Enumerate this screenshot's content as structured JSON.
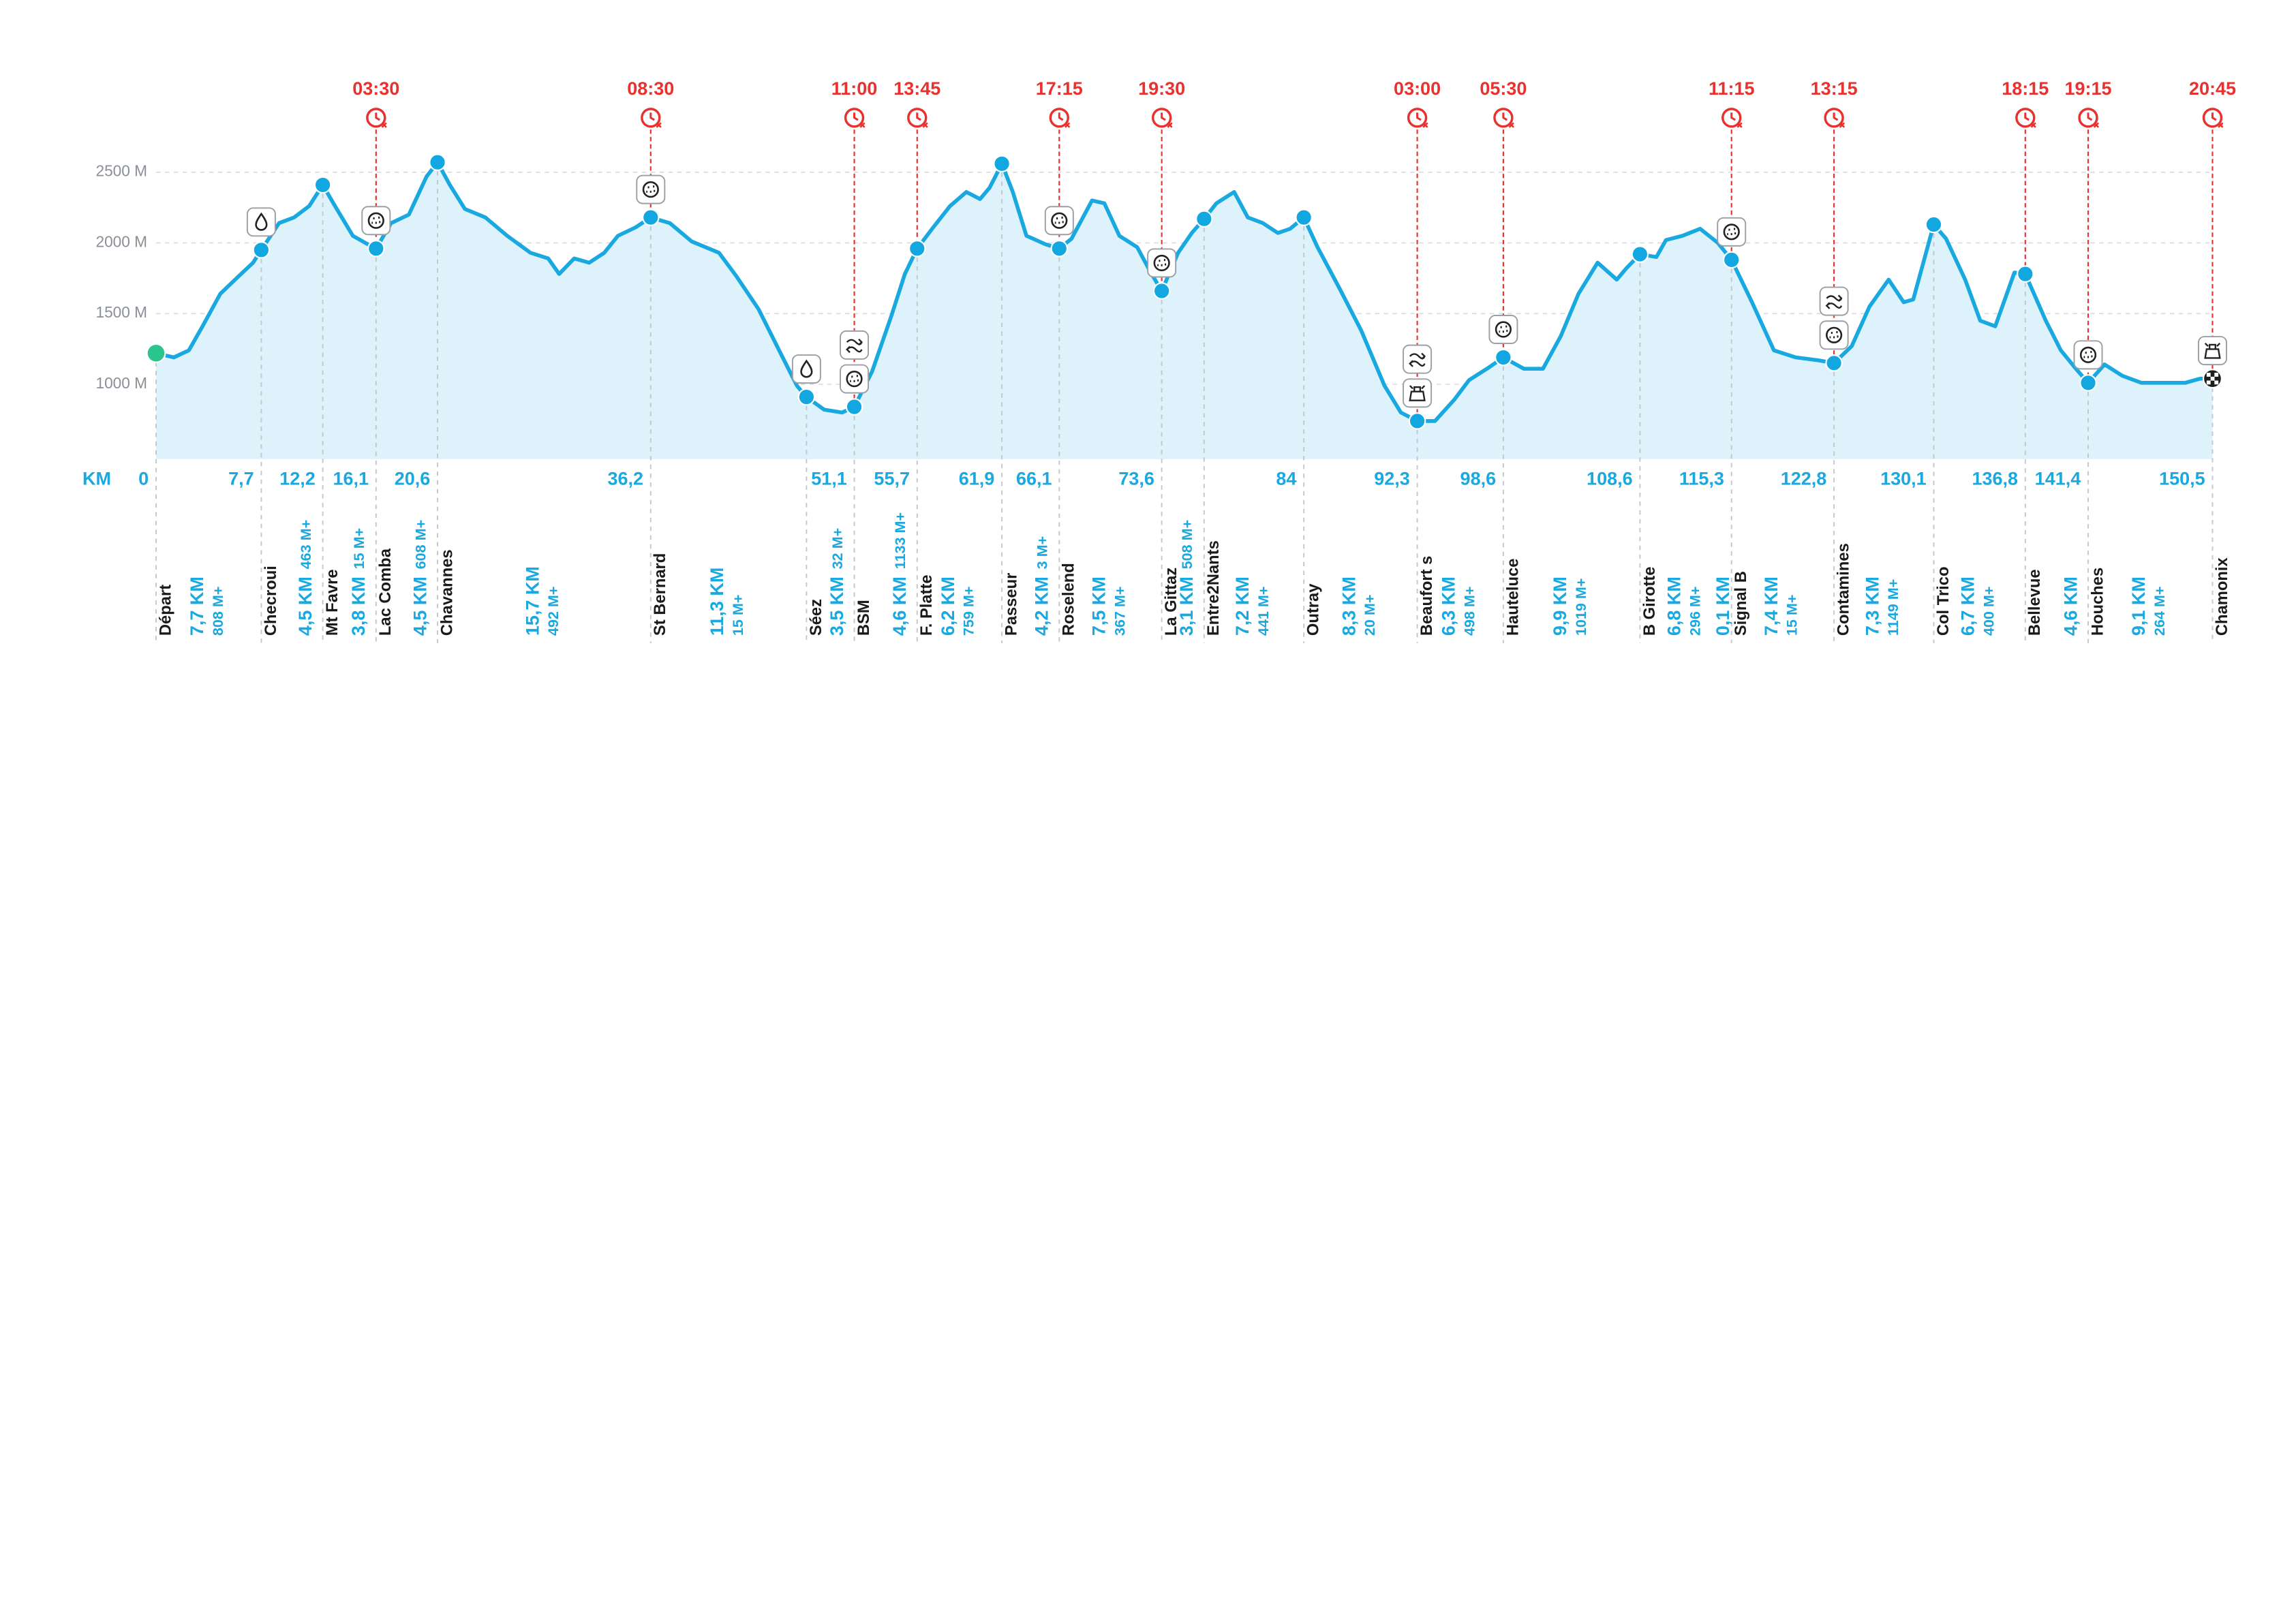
{
  "chart_data": {
    "type": "area",
    "color": "#19a9e0",
    "x_label": "KM",
    "xlim": [
      0,
      150.5
    ],
    "ylim": [
      470,
      2750
    ],
    "grid": true,
    "yticks": [
      {
        "value": 1000,
        "label": "1000 M"
      },
      {
        "value": 1500,
        "label": "1500 M"
      },
      {
        "value": 2000,
        "label": "2000 M"
      },
      {
        "value": 2500,
        "label": "2500 M"
      }
    ],
    "xticks": [
      0,
      {
        "value": 7.7,
        "label": "7,7"
      },
      {
        "value": 12.2,
        "label": "12,2"
      },
      {
        "value": 16.1,
        "label": "16,1"
      },
      {
        "value": 20.6,
        "label": "20,6"
      },
      {
        "value": 36.2,
        "label": "36,2"
      },
      {
        "value": 51.1,
        "label": "51,1"
      },
      {
        "value": 55.7,
        "label": "55,7"
      },
      {
        "value": 61.9,
        "label": "61,9"
      },
      {
        "value": 66.1,
        "label": "66,1"
      },
      {
        "value": 73.6,
        "label": "73,6"
      },
      84,
      {
        "value": 92.3,
        "label": "92,3"
      },
      {
        "value": 98.6,
        "label": "98,6"
      },
      {
        "value": 108.6,
        "label": "108,6"
      },
      {
        "value": 115.3,
        "label": "115,3"
      },
      {
        "value": 122.8,
        "label": "122,8"
      },
      {
        "value": 130.1,
        "label": "130,1"
      },
      {
        "value": 136.8,
        "label": "136,8"
      },
      {
        "value": 141.4,
        "label": "141,4"
      },
      {
        "value": 150.5,
        "label": "150,5"
      }
    ],
    "x": [
      0,
      1.3,
      2.4,
      3.4,
      4.7,
      6.0,
      7.1,
      7.7,
      9.0,
      10.1,
      11.2,
      12.2,
      13.1,
      14.4,
      15.5,
      16.1,
      17.2,
      18.5,
      19.8,
      20.6,
      21.5,
      22.6,
      24.1,
      25.7,
      27.4,
      28.7,
      29.5,
      30.6,
      31.7,
      32.8,
      33.8,
      35.1,
      36.2,
      37.6,
      39.2,
      41.2,
      42.5,
      44.1,
      45.7,
      46.9,
      47.6,
      48.9,
      50.2,
      51.1,
      52.4,
      53.8,
      54.8,
      55.7,
      56.8,
      58.1,
      59.3,
      60.3,
      61.0,
      61.9,
      62.7,
      63.7,
      65.1,
      66.1,
      67.0,
      68.5,
      69.4,
      70.5,
      71.8,
      72.8,
      73.6,
      74.8,
      75.8,
      76.7,
      77.6,
      78.9,
      79.9,
      81.0,
      82.1,
      83.0,
      84.0,
      85.0,
      86.6,
      88.2,
      89.9,
      91.1,
      92.3,
      93.6,
      95.0,
      96.1,
      97.4,
      98.6,
      100.1,
      101.5,
      102.8,
      104.1,
      105.5,
      106.9,
      107.6,
      108.6,
      109.8,
      110.5,
      111.7,
      113.0,
      114.3,
      115.3,
      116.8,
      118.4,
      120.0,
      121.6,
      122.8,
      124.1,
      125.4,
      126.8,
      127.9,
      128.6,
      130.1,
      131.0,
      132.4,
      133.5,
      134.6,
      136.0,
      136.8,
      138.3,
      139.4,
      140.5,
      141.4,
      142.6,
      143.9,
      145.3,
      146.9,
      148.5,
      149.6,
      150.5
    ],
    "values": [
      1220,
      1190,
      1240,
      1410,
      1640,
      1760,
      1860,
      1950,
      2140,
      2180,
      2260,
      2410,
      2260,
      2050,
      1990,
      1960,
      2140,
      2200,
      2470,
      2570,
      2410,
      2240,
      2180,
      2050,
      1930,
      1890,
      1780,
      1890,
      1860,
      1930,
      2050,
      2110,
      2180,
      2140,
      2010,
      1930,
      1760,
      1530,
      1220,
      990,
      910,
      820,
      800,
      840,
      1090,
      1480,
      1780,
      1960,
      2100,
      2260,
      2360,
      2310,
      2390,
      2560,
      2360,
      2050,
      1990,
      1960,
      2030,
      2300,
      2280,
      2050,
      1970,
      1790,
      1660,
      1930,
      2070,
      2170,
      2280,
      2360,
      2180,
      2140,
      2070,
      2100,
      2180,
      1970,
      1680,
      1380,
      990,
      800,
      740,
      740,
      890,
      1030,
      1110,
      1190,
      1110,
      1110,
      1340,
      1640,
      1860,
      1740,
      1820,
      1920,
      1900,
      2020,
      2050,
      2100,
      2000,
      1880,
      1580,
      1240,
      1190,
      1170,
      1150,
      1270,
      1550,
      1740,
      1580,
      1600,
      2130,
      2030,
      1740,
      1450,
      1410,
      1790,
      1780,
      1450,
      1240,
      1110,
      1010,
      1140,
      1060,
      1010,
      1010,
      1010,
      1040,
      1040
    ],
    "checkpoints": [
      {
        "name": "Départ",
        "km": 0,
        "elevation": 1220
      },
      {
        "name": "Checroui",
        "km": 7.7,
        "elevation": 1950
      },
      {
        "name": "Mt Favre",
        "km": 12.2,
        "elevation": 2410
      },
      {
        "name": "Lac Comba",
        "km": 16.1,
        "elevation": 1960,
        "cutoff": "03:30"
      },
      {
        "name": "Chavannes",
        "km": 20.6,
        "elevation": 2570
      },
      {
        "name": "St Bernard",
        "km": 36.2,
        "elevation": 2180,
        "cutoff": "08:30"
      },
      {
        "name": "Séez",
        "km": 47.6,
        "elevation": 910
      },
      {
        "name": "BSM",
        "km": 51.1,
        "elevation": 840,
        "cutoff": "11:00"
      },
      {
        "name": "F. Platte",
        "km": 55.7,
        "elevation": 1960,
        "cutoff": "13:45"
      },
      {
        "name": "Passeur",
        "km": 61.9,
        "elevation": 2560
      },
      {
        "name": "Roselend",
        "km": 66.1,
        "elevation": 1960,
        "cutoff": "17:15"
      },
      {
        "name": "La Gittaz",
        "km": 73.6,
        "elevation": 1660,
        "cutoff": "19:30"
      },
      {
        "name": "Entre2Nants",
        "km": 76.7,
        "elevation": 2170
      },
      {
        "name": "Outray",
        "km": 84,
        "elevation": 2180
      },
      {
        "name": "Beaufort s",
        "km": 92.3,
        "elevation": 740,
        "cutoff": "03:00"
      },
      {
        "name": "Hauteluce",
        "km": 98.6,
        "elevation": 1190,
        "cutoff": "05:30"
      },
      {
        "name": "B Girotte",
        "km": 108.6,
        "elevation": 1920
      },
      {
        "name": "Signal B",
        "km": 115.3,
        "elevation": 1880,
        "cutoff": "11:15"
      },
      {
        "name": "Contamines",
        "km": 122.8,
        "elevation": 1150,
        "cutoff": "13:15"
      },
      {
        "name": "Col Trico",
        "km": 130.1,
        "elevation": 2130
      },
      {
        "name": "Bellevue",
        "km": 136.8,
        "elevation": 1780,
        "cutoff": "18:15"
      },
      {
        "name": "Houches",
        "km": 141.4,
        "elevation": 1010,
        "cutoff": "19:15"
      },
      {
        "name": "Chamonix",
        "km": 150.5,
        "elevation": 1040,
        "cutoff": "20:45"
      }
    ],
    "segments": [
      {
        "distance": "7,7 KM",
        "gain": "808 M+"
      },
      {
        "distance": "4,5 KM",
        "gain": "463 M+"
      },
      {
        "distance": "3,8 KM",
        "gain": "15 M+"
      },
      {
        "distance": "4,5 KM",
        "gain": "608 M+"
      },
      {
        "distance": "15,7 KM",
        "gain": "492 M+"
      },
      {
        "distance": "11,3 KM",
        "gain": "15 M+"
      },
      {
        "distance": "3,5 KM",
        "gain": "32 M+"
      },
      {
        "distance": "4,6 KM",
        "gain": "1133 M+"
      },
      {
        "distance": "6,2 KM",
        "gain": "759 M+"
      },
      {
        "distance": "4,2 KM",
        "gain": "3 M+"
      },
      {
        "distance": "7,5 KM",
        "gain": "367 M+"
      },
      {
        "distance": "3,1 KM",
        "gain": "508 M+"
      },
      {
        "distance": "7,2 KM",
        "gain": "441 M+"
      },
      {
        "distance": "8,3 KM",
        "gain": "20 M+"
      },
      {
        "distance": "6,3 KM",
        "gain": "498 M+"
      },
      {
        "distance": "9,9 KM",
        "gain": "1019 M+"
      },
      {
        "distance": "6,8 KM",
        "gain": "296 M+",
        "overlap_label": "0,1 KM"
      },
      {
        "distance": "7,4 KM",
        "gain": "15 M+"
      },
      {
        "distance": "7,3 KM",
        "gain": "1149 M+"
      },
      {
        "distance": "6,7 KM",
        "gain": "400 M+"
      },
      {
        "distance": "4,6 KM"
      },
      {
        "distance": "9,1 KM",
        "gain": "264 M+"
      }
    ]
  }
}
